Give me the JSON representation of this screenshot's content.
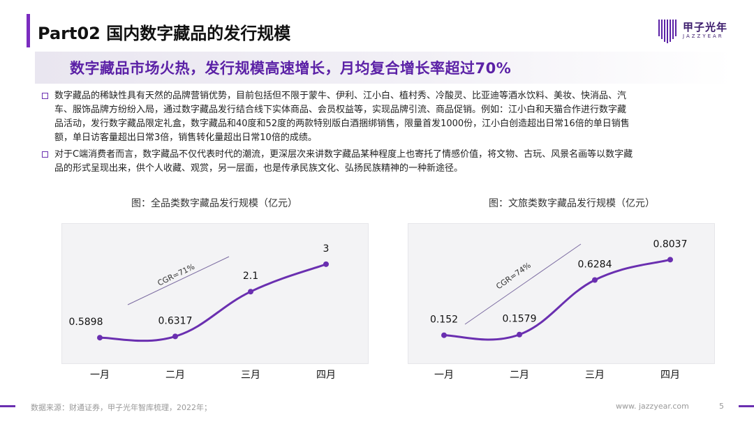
{
  "header": {
    "title": "Part02 国内数字藏品的发行规模",
    "logo_cn": "甲子光年",
    "logo_en": "JAZZYEAR"
  },
  "headline": "数字藏品市场火热，发行规模高速增长，月均复合增长率超过70%",
  "bullets": [
    {
      "lines": [
        "数字藏品的稀缺性具有天然的品牌营销优势，目前包括但不限于蒙牛、伊利、江小白、植村秀、冷酸灵、比亚迪等酒水饮料、美妆、快消品、汽",
        "车、服饰品牌方纷纷入局，通过数字藏品发行结合线下实体商品、会员权益等，实现品牌引流、商品促销。例如：江小白和天猫合作进行数字藏",
        "品活动，发行数字藏品限定礼盒，数字藏品和40度和52度的两款特别版白酒捆绑销售，限量首发1000份，江小白创造超出日常16倍的单日销售",
        "额，单日访客量超出日常3倍，销售转化量超出日常10倍的成绩。"
      ]
    },
    {
      "lines": [
        "对于C端消费者而言，数字藏品不仅代表时代的潮流，更深层次来讲数字藏品某种程度上也寄托了情感价值，将文物、古玩、风景名画等以数字藏",
        "品的形式呈现出来，供个人收藏、观赏，另一层面，也是传承民族文化、弘扬民族精神的一种新途径。"
      ]
    }
  ],
  "chart_data": [
    {
      "type": "line",
      "title": "图：全品类数字藏品发行规模（亿元）",
      "categories": [
        "一月",
        "二月",
        "三月",
        "四月"
      ],
      "values": [
        0.5898,
        0.6317,
        2.1,
        3
      ],
      "data_labels": [
        "0.5898",
        "0.6317",
        "2.1",
        "3"
      ],
      "annotation": "CGR=71%",
      "ylim": [
        0,
        3.5
      ],
      "color": "#6a2fb0"
    },
    {
      "type": "line",
      "title": "图：文旅类数字藏品发行规模（亿元）",
      "categories": [
        "一月",
        "二月",
        "三月",
        "四月"
      ],
      "values": [
        0.152,
        0.1579,
        0.6284,
        0.8037
      ],
      "data_labels": [
        "0.152",
        "0.1579",
        "0.6284",
        "0.8037"
      ],
      "annotation": "CGR=74%",
      "ylim": [
        0,
        0.95
      ],
      "color": "#6a2fb0"
    }
  ],
  "footer": {
    "source": "数据来源：财通证券，甲子光年智库梳理，2022年；",
    "url": "www. jazzyear.com",
    "page": "5"
  }
}
